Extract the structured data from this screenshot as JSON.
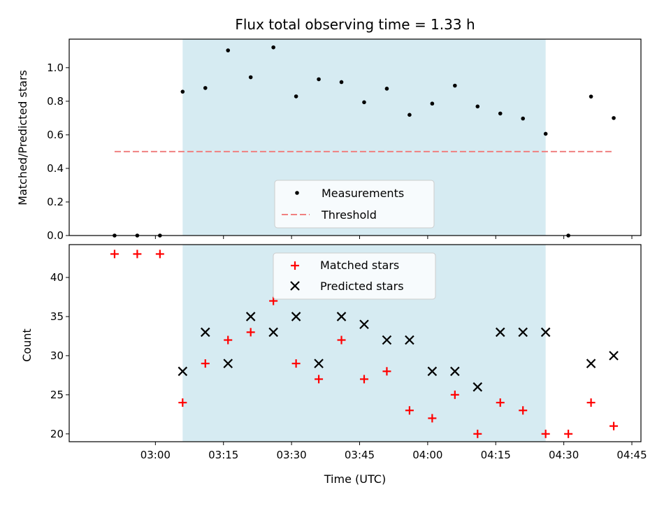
{
  "chart_data": [
    {
      "type": "scatter",
      "title": "Flux total observing time = 1.33 h",
      "ylabel": "Matched/Predicted stars",
      "xlabel": "",
      "ylim": [
        0,
        1.17
      ],
      "yticks": [
        "0.0",
        "0.2",
        "0.4",
        "0.6",
        "0.8",
        "1.0"
      ],
      "xlim": [
        "02:41:00",
        "04:47:00"
      ],
      "shaded_region": [
        "03:06",
        "04:26"
      ],
      "shade_color": "#add8e6",
      "legend": "lower center",
      "series": [
        {
          "name": "Measurements",
          "color": "#000000",
          "marker": "dot",
          "x": [
            "02:51",
            "02:56",
            "03:01",
            "03:06",
            "03:11",
            "03:16",
            "03:21",
            "03:26",
            "03:31",
            "03:36",
            "03:41",
            "03:46",
            "03:51",
            "03:56",
            "04:01",
            "04:06",
            "04:11",
            "04:16",
            "04:21",
            "04:26",
            "04:31",
            "04:36",
            "04:41"
          ],
          "y": [
            0.0,
            0.0,
            0.0,
            0.857,
            0.879,
            1.103,
            0.943,
            1.121,
            0.829,
            0.931,
            0.914,
            0.794,
            0.875,
            0.719,
            0.786,
            0.893,
            0.769,
            0.727,
            0.697,
            0.606,
            0.0,
            0.828,
            0.7
          ]
        },
        {
          "name": "Threshold",
          "color": "#f08080",
          "style": "dashed",
          "x": [
            "02:51",
            "04:41"
          ],
          "y": [
            0.5,
            0.5
          ]
        }
      ]
    },
    {
      "type": "scatter",
      "title": "",
      "ylabel": "Count",
      "xlabel": "Time (UTC)",
      "ylim": [
        19,
        44.2
      ],
      "yticks": [
        "20",
        "25",
        "30",
        "35",
        "40"
      ],
      "xlim": [
        "02:41:00",
        "04:47:00"
      ],
      "xticks": [
        "03:00",
        "03:15",
        "03:30",
        "03:45",
        "04:00",
        "04:15",
        "04:30",
        "04:45"
      ],
      "shaded_region": [
        "03:06",
        "04:26"
      ],
      "shade_color": "#add8e6",
      "legend": "upper center",
      "series": [
        {
          "name": "Matched stars",
          "color": "#ff0000",
          "marker": "plus",
          "x": [
            "02:51",
            "02:56",
            "03:01",
            "03:06",
            "03:11",
            "03:16",
            "03:21",
            "03:26",
            "03:31",
            "03:36",
            "03:41",
            "03:46",
            "03:51",
            "03:56",
            "04:01",
            "04:06",
            "04:11",
            "04:16",
            "04:21",
            "04:26",
            "04:31",
            "04:36",
            "04:41"
          ],
          "y": [
            43,
            43,
            43,
            24,
            29,
            32,
            33,
            37,
            29,
            27,
            32,
            27,
            28,
            23,
            22,
            25,
            20,
            24,
            23,
            20,
            20,
            24,
            21
          ]
        },
        {
          "name": "Predicted stars",
          "color": "#000000",
          "marker": "x",
          "x": [
            "03:06",
            "03:11",
            "03:16",
            "03:21",
            "03:26",
            "03:31",
            "03:36",
            "03:41",
            "03:46",
            "03:51",
            "03:56",
            "04:01",
            "04:06",
            "04:11",
            "04:16",
            "04:21",
            "04:26",
            "04:36",
            "04:41"
          ],
          "y": [
            28,
            33,
            29,
            35,
            33,
            35,
            29,
            35,
            34,
            32,
            32,
            28,
            28,
            26,
            33,
            33,
            33,
            29,
            30
          ]
        }
      ]
    }
  ]
}
